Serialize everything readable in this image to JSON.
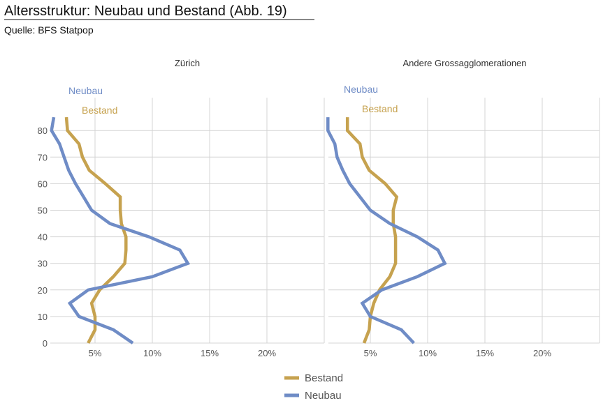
{
  "title": "Altersstruktur: Neubau und Bestand  (Abb. 19)",
  "subtitle": "Quelle: BFS Statpop",
  "colors": {
    "Bestand": "#C6A24F",
    "Neubau": "#6F8CC6"
  },
  "legend": [
    "Bestand",
    "Neubau"
  ],
  "chart_data": [
    {
      "type": "line",
      "title": "Zürich",
      "xlabel": "",
      "ylabel": "",
      "xlim": [
        1,
        25
      ],
      "ylim": [
        0,
        85
      ],
      "xticks": [
        5,
        10,
        15,
        20
      ],
      "xtick_labels": [
        "5%",
        "10%",
        "15%",
        "20%"
      ],
      "yticks": [
        0,
        10,
        20,
        30,
        40,
        50,
        60,
        70,
        80
      ],
      "y_age": [
        0,
        5,
        10,
        15,
        20,
        25,
        30,
        35,
        40,
        45,
        50,
        55,
        60,
        65,
        70,
        75,
        80,
        85
      ],
      "series": [
        {
          "name": "Bestand",
          "label": "Bestand",
          "values": [
            4.4,
            5.0,
            5.0,
            4.7,
            5.4,
            6.6,
            7.6,
            7.7,
            7.7,
            7.3,
            7.2,
            7.2,
            5.9,
            4.5,
            3.9,
            3.6,
            2.6,
            2.5
          ]
        },
        {
          "name": "Neubau",
          "label": "Neubau",
          "values": [
            8.3,
            6.6,
            3.6,
            2.8,
            4.4,
            10.0,
            13.1,
            12.4,
            9.7,
            6.3,
            4.7,
            4.0,
            3.3,
            2.7,
            2.3,
            1.9,
            1.2,
            1.4
          ]
        }
      ],
      "grid": true
    },
    {
      "type": "line",
      "title": "Andere Grossagglomerationen",
      "xlabel": "",
      "ylabel": "",
      "xlim": [
        1,
        25
      ],
      "ylim": [
        0,
        85
      ],
      "xticks": [
        5,
        10,
        15,
        20
      ],
      "xtick_labels": [
        "5%",
        "10%",
        "15%",
        "20%"
      ],
      "yticks": [
        0,
        10,
        20,
        30,
        40,
        50,
        60,
        70,
        80
      ],
      "y_age": [
        0,
        5,
        10,
        15,
        20,
        25,
        30,
        35,
        40,
        45,
        50,
        55,
        60,
        65,
        70,
        75,
        80,
        85
      ],
      "series": [
        {
          "name": "Bestand",
          "label": "Bestand",
          "values": [
            4.45,
            4.9,
            5.0,
            5.3,
            5.8,
            6.7,
            7.2,
            7.2,
            7.2,
            7.0,
            7.0,
            7.3,
            6.3,
            4.9,
            4.3,
            4.1,
            3.0,
            3.0
          ]
        },
        {
          "name": "Neubau",
          "label": "Neubau",
          "values": [
            8.8,
            7.7,
            5.0,
            4.3,
            6.0,
            9.1,
            11.5,
            10.9,
            9.1,
            6.7,
            5.0,
            4.1,
            3.2,
            2.6,
            2.1,
            1.9,
            1.3,
            1.3
          ]
        }
      ],
      "grid": true
    }
  ]
}
